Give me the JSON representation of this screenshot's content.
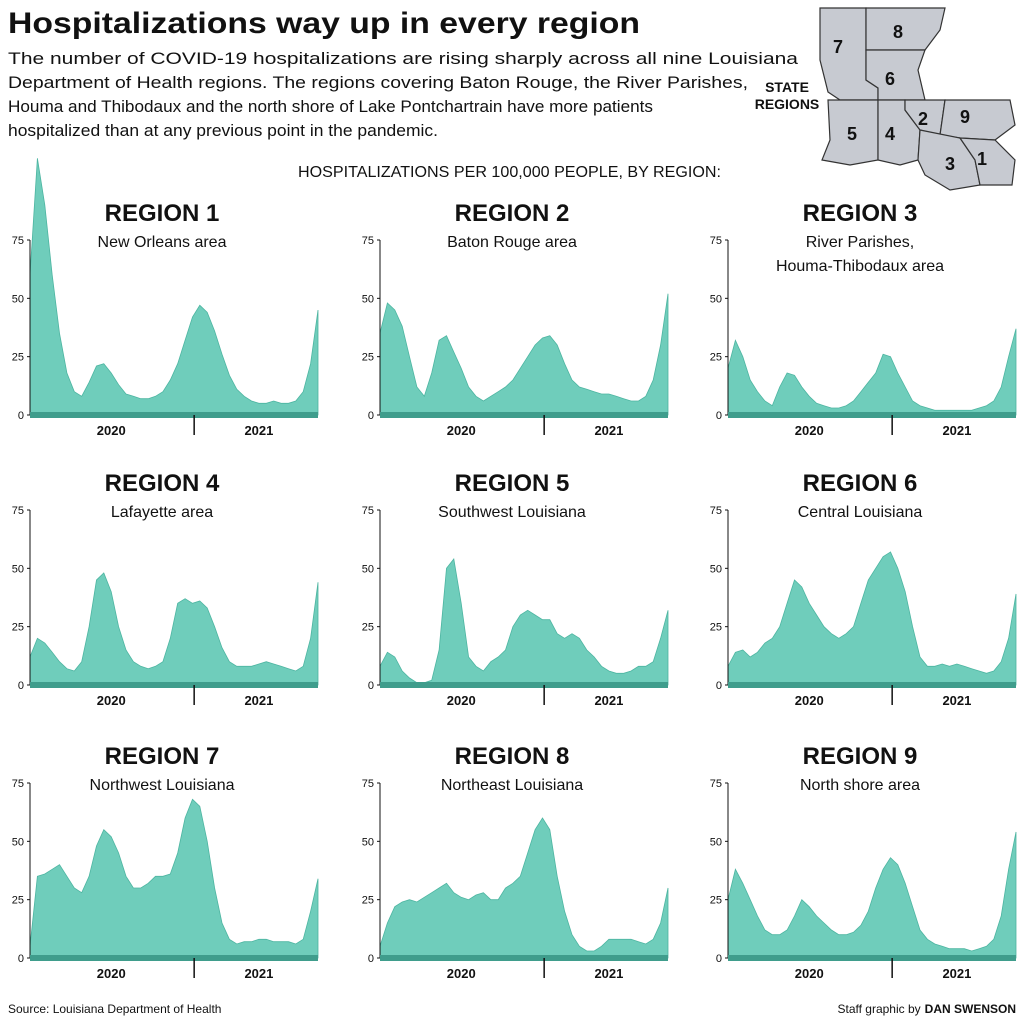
{
  "header": {
    "title": "Hospitalizations way up in every region",
    "subtitle": [
      "The number of COVID-19 hospitalizations are rising sharply across all nine Louisiana",
      "Department of Health regions. The regions covering Baton Rouge, the River Parishes,",
      "Houma and Thibodaux and the north shore of Lake Pontchartrain have more patients",
      "hospitalized than at any previous point in the pandemic."
    ],
    "chart_heading": "HOSPITALIZATIONS PER 100,000 PEOPLE, BY REGION:"
  },
  "map": {
    "title": [
      "STATE",
      "REGIONS"
    ],
    "labels": [
      "1",
      "2",
      "3",
      "4",
      "5",
      "6",
      "7",
      "8",
      "9"
    ]
  },
  "footer": {
    "source": "Source: Louisiana Department of Health",
    "credit": "Staff graphic by",
    "author": "DAN SWENSON"
  },
  "chart_data": [
    {
      "type": "area",
      "title": "REGION 1",
      "subtitle": [
        "New Orleans area"
      ],
      "color": "#6fcdbb",
      "ylim": [
        0,
        75
      ],
      "yticks": [
        0,
        25,
        50,
        75
      ],
      "categories": [
        null,
        null,
        null,
        null,
        null,
        null,
        null,
        null,
        null,
        null,
        null,
        "2020",
        null,
        null,
        null,
        null,
        null,
        null,
        null,
        null,
        null,
        null,
        null,
        null,
        null,
        null,
        null,
        null,
        null,
        null,
        null,
        "2021",
        null,
        null,
        null,
        null,
        null,
        null,
        null,
        null
      ],
      "values": [
        60,
        110,
        90,
        60,
        35,
        18,
        10,
        8,
        14,
        21,
        22,
        18,
        13,
        9,
        8,
        7,
        7,
        8,
        10,
        15,
        22,
        32,
        42,
        47,
        44,
        36,
        26,
        17,
        11,
        8,
        6,
        5,
        5,
        6,
        5,
        5,
        6,
        10,
        22,
        45
      ]
    },
    {
      "type": "area",
      "title": "REGION 2",
      "subtitle": [
        "Baton Rouge area"
      ],
      "color": "#6fcdbb",
      "ylim": [
        0,
        75
      ],
      "yticks": [
        0,
        25,
        50,
        75
      ],
      "categories": [
        null,
        null,
        null,
        null,
        null,
        null,
        null,
        null,
        null,
        null,
        null,
        "2020",
        null,
        null,
        null,
        null,
        null,
        null,
        null,
        null,
        null,
        null,
        null,
        null,
        null,
        null,
        null,
        null,
        null,
        null,
        null,
        "2021",
        null,
        null,
        null,
        null,
        null,
        null,
        null,
        null
      ],
      "values": [
        35,
        48,
        45,
        38,
        25,
        12,
        8,
        18,
        32,
        34,
        27,
        20,
        12,
        8,
        6,
        8,
        10,
        12,
        15,
        20,
        25,
        30,
        33,
        34,
        30,
        22,
        15,
        12,
        11,
        10,
        9,
        9,
        8,
        7,
        6,
        6,
        8,
        15,
        30,
        52
      ]
    },
    {
      "type": "area",
      "title": "REGION 3",
      "subtitle": [
        "River Parishes,",
        "Houma-Thibodaux area"
      ],
      "color": "#6fcdbb",
      "ylim": [
        0,
        75
      ],
      "yticks": [
        0,
        25,
        50,
        75
      ],
      "categories": [
        null,
        null,
        null,
        null,
        null,
        null,
        null,
        null,
        null,
        null,
        null,
        "2020",
        null,
        null,
        null,
        null,
        null,
        null,
        null,
        null,
        null,
        null,
        null,
        null,
        null,
        null,
        null,
        null,
        null,
        null,
        null,
        "2021",
        null,
        null,
        null,
        null,
        null,
        null,
        null,
        null
      ],
      "values": [
        20,
        32,
        25,
        15,
        10,
        6,
        4,
        12,
        18,
        17,
        12,
        8,
        5,
        4,
        3,
        3,
        4,
        6,
        10,
        14,
        18,
        26,
        25,
        18,
        12,
        6,
        4,
        3,
        2,
        2,
        2,
        2,
        2,
        2,
        3,
        4,
        6,
        12,
        25,
        37
      ]
    },
    {
      "type": "area",
      "title": "REGION 4",
      "subtitle": [
        "Lafayette area"
      ],
      "color": "#6fcdbb",
      "ylim": [
        0,
        75
      ],
      "yticks": [
        0,
        25,
        50,
        75
      ],
      "categories": [
        null,
        null,
        null,
        null,
        null,
        null,
        null,
        null,
        null,
        null,
        null,
        "2020",
        null,
        null,
        null,
        null,
        null,
        null,
        null,
        null,
        null,
        null,
        null,
        null,
        null,
        null,
        null,
        null,
        null,
        null,
        null,
        "2021",
        null,
        null,
        null,
        null,
        null,
        null,
        null,
        null
      ],
      "values": [
        12,
        20,
        18,
        14,
        10,
        7,
        6,
        10,
        25,
        45,
        48,
        40,
        25,
        15,
        10,
        8,
        7,
        8,
        10,
        20,
        35,
        37,
        35,
        36,
        33,
        25,
        16,
        10,
        8,
        8,
        8,
        9,
        10,
        9,
        8,
        7,
        6,
        8,
        20,
        44
      ]
    },
    {
      "type": "area",
      "title": "REGION 5",
      "subtitle": [
        "Southwest Louisiana"
      ],
      "color": "#6fcdbb",
      "ylim": [
        0,
        75
      ],
      "yticks": [
        0,
        25,
        50,
        75
      ],
      "categories": [
        null,
        null,
        null,
        null,
        null,
        null,
        null,
        null,
        null,
        null,
        null,
        "2020",
        null,
        null,
        null,
        null,
        null,
        null,
        null,
        null,
        null,
        null,
        null,
        null,
        null,
        null,
        null,
        null,
        null,
        null,
        null,
        "2021",
        null,
        null,
        null,
        null,
        null,
        null,
        null,
        null
      ],
      "values": [
        8,
        14,
        12,
        6,
        3,
        1,
        1,
        2,
        15,
        50,
        54,
        35,
        12,
        8,
        6,
        10,
        12,
        15,
        25,
        30,
        32,
        30,
        28,
        28,
        22,
        20,
        22,
        20,
        15,
        12,
        8,
        6,
        5,
        5,
        6,
        8,
        8,
        10,
        20,
        32
      ]
    },
    {
      "type": "area",
      "title": "REGION 6",
      "subtitle": [
        "Central Louisiana"
      ],
      "color": "#6fcdbb",
      "ylim": [
        0,
        75
      ],
      "yticks": [
        0,
        25,
        50,
        75
      ],
      "categories": [
        null,
        null,
        null,
        null,
        null,
        null,
        null,
        null,
        null,
        null,
        null,
        "2020",
        null,
        null,
        null,
        null,
        null,
        null,
        null,
        null,
        null,
        null,
        null,
        null,
        null,
        null,
        null,
        null,
        null,
        null,
        null,
        "2021",
        null,
        null,
        null,
        null,
        null,
        null,
        null,
        null
      ],
      "values": [
        8,
        14,
        15,
        12,
        14,
        18,
        20,
        25,
        35,
        45,
        42,
        35,
        30,
        25,
        22,
        20,
        22,
        25,
        35,
        45,
        50,
        55,
        57,
        50,
        40,
        25,
        12,
        8,
        8,
        9,
        8,
        9,
        8,
        7,
        6,
        5,
        6,
        10,
        20,
        39
      ]
    },
    {
      "type": "area",
      "title": "REGION 7",
      "subtitle": [
        "Northwest Louisiana"
      ],
      "color": "#6fcdbb",
      "ylim": [
        0,
        75
      ],
      "yticks": [
        0,
        25,
        50,
        75
      ],
      "categories": [
        null,
        null,
        null,
        null,
        null,
        null,
        null,
        null,
        null,
        null,
        null,
        "2020",
        null,
        null,
        null,
        null,
        null,
        null,
        null,
        null,
        null,
        null,
        null,
        null,
        null,
        null,
        null,
        null,
        null,
        null,
        null,
        "2021",
        null,
        null,
        null,
        null,
        null,
        null,
        null,
        null
      ],
      "values": [
        5,
        35,
        36,
        38,
        40,
        35,
        30,
        28,
        35,
        48,
        55,
        52,
        45,
        35,
        30,
        30,
        32,
        35,
        35,
        36,
        45,
        60,
        68,
        65,
        50,
        30,
        15,
        8,
        6,
        7,
        7,
        8,
        8,
        7,
        7,
        7,
        6,
        8,
        20,
        34
      ]
    },
    {
      "type": "area",
      "title": "REGION 8",
      "subtitle": [
        "Northeast Louisiana"
      ],
      "color": "#6fcdbb",
      "ylim": [
        0,
        75
      ],
      "yticks": [
        0,
        25,
        50,
        75
      ],
      "categories": [
        null,
        null,
        null,
        null,
        null,
        null,
        null,
        null,
        null,
        null,
        null,
        "2020",
        null,
        null,
        null,
        null,
        null,
        null,
        null,
        null,
        null,
        null,
        null,
        null,
        null,
        null,
        null,
        null,
        null,
        null,
        null,
        "2021",
        null,
        null,
        null,
        null,
        null,
        null,
        null,
        null
      ],
      "values": [
        5,
        15,
        22,
        24,
        25,
        24,
        26,
        28,
        30,
        32,
        28,
        26,
        25,
        27,
        28,
        25,
        25,
        30,
        32,
        35,
        45,
        55,
        60,
        55,
        35,
        20,
        10,
        5,
        3,
        3,
        5,
        8,
        8,
        8,
        8,
        7,
        6,
        8,
        15,
        30
      ]
    },
    {
      "type": "area",
      "title": "REGION 9",
      "subtitle": [
        "North shore area"
      ],
      "color": "#6fcdbb",
      "ylim": [
        0,
        75
      ],
      "yticks": [
        0,
        25,
        50,
        75
      ],
      "categories": [
        null,
        null,
        null,
        null,
        null,
        null,
        null,
        null,
        null,
        null,
        null,
        "2020",
        null,
        null,
        null,
        null,
        null,
        null,
        null,
        null,
        null,
        null,
        null,
        null,
        null,
        null,
        null,
        null,
        null,
        null,
        null,
        "2021",
        null,
        null,
        null,
        null,
        null,
        null,
        null,
        null
      ],
      "values": [
        25,
        38,
        32,
        25,
        18,
        12,
        10,
        10,
        12,
        18,
        25,
        22,
        18,
        15,
        12,
        10,
        10,
        11,
        14,
        20,
        30,
        38,
        43,
        40,
        32,
        22,
        12,
        8,
        6,
        5,
        4,
        4,
        4,
        3,
        4,
        5,
        8,
        18,
        38,
        54
      ]
    }
  ]
}
